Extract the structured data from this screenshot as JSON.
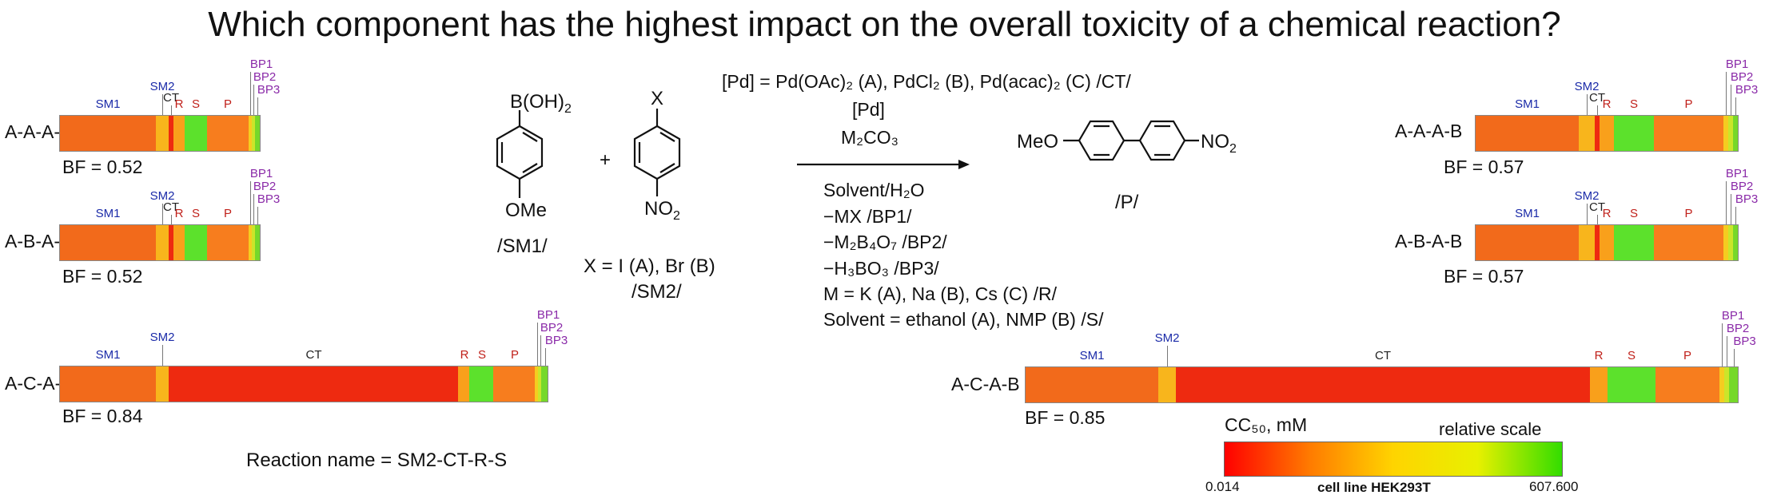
{
  "title": "Which component has the highest impact on the overall toxicity of a chemical reaction?",
  "reactions": [
    {
      "name": "A-A-A-A",
      "bf": "BF = 0.52"
    },
    {
      "name": "A-B-A-A",
      "bf": "BF = 0.52"
    },
    {
      "name": "A-C-A-A",
      "bf": "BF = 0.84"
    },
    {
      "name": "A-A-A-B",
      "bf": "BF = 0.57"
    },
    {
      "name": "A-B-A-B",
      "bf": "BF = 0.57"
    },
    {
      "name": "A-C-A-B",
      "bf": "BF = 0.85"
    }
  ],
  "segment_labels": {
    "SM1": "SM1",
    "SM2": "SM2",
    "CT": "CT",
    "R": "R",
    "S": "S",
    "P": "P",
    "BP1": "BP1",
    "BP2": "BP2",
    "BP3": "BP3"
  },
  "reaction_name": "Reaction name = SM2-CT-R-S",
  "chemistry": {
    "sm1_top": "B(OH)",
    "sm1_top_sub": "2",
    "sm1_bottom": "OMe",
    "sm1_label": "/SM1/",
    "plus": "+",
    "sm2_top": "X",
    "sm2_bottom": "NO",
    "sm2_bottom_sub": "2",
    "sm2_x": "X = I (A), Br (B)",
    "sm2_label": "/SM2/",
    "product_left": "MeO",
    "product_right": "NO",
    "product_right_sub": "2",
    "product_label": "/P/"
  },
  "conditions": {
    "catalyst_line": "[Pd] = Pd(OAc)₂ (A), PdCl₂ (B), Pd(acac)₂ (C) /CT/",
    "pd": "[Pd]",
    "base": "M₂CO₃",
    "solvent_water": "Solvent/H₂O",
    "mx": "−MX /BP1/",
    "mb": "−M₂B₄O₇ /BP2/",
    "hbo": "−H₃BO₃ /BP3/",
    "metal": "M = K (A), Na (B), Cs (C) /R/",
    "solvent": "Solvent = ethanol (A), NMP (B) /S/"
  },
  "legend": {
    "title": "CC₅₀, mM",
    "scale": "relative scale",
    "min": "0.014",
    "max": "607.600",
    "cell_line": "cell line HEK293T",
    "colors": [
      "#ff0000",
      "#ff7a00",
      "#ffd400",
      "#e8f000",
      "#33dd00"
    ]
  },
  "colors": {
    "SM1": "#f26a1b",
    "SM2": "#f8b51c",
    "CT": "#ee2a10",
    "R": "#f9a01b",
    "S": "#5ce12c",
    "P": "#f77d1e",
    "BP1": "#f5cc20",
    "BP2": "#cbe52a",
    "BP3": "#76d82a"
  }
}
